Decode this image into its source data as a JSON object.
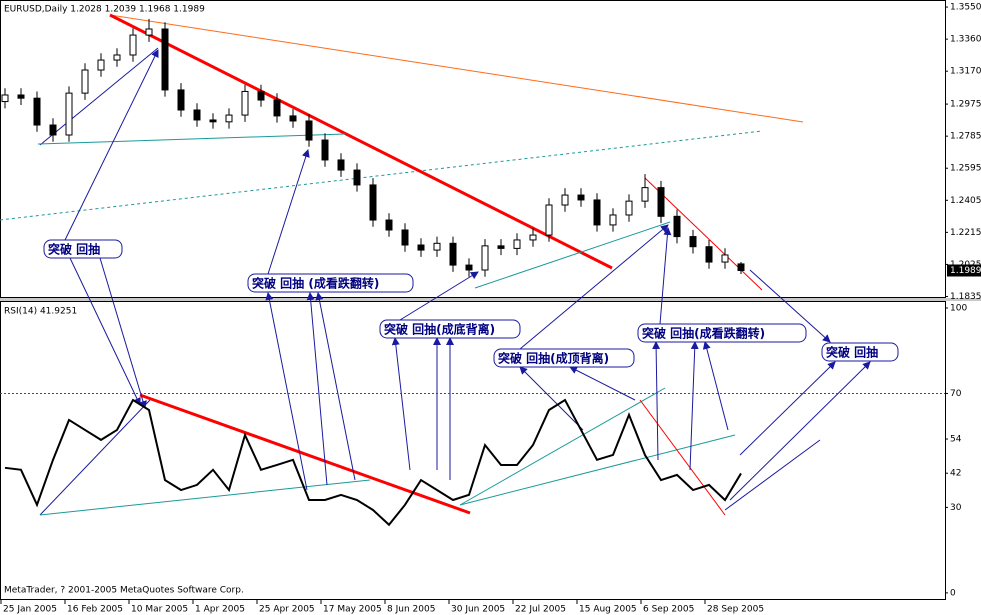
{
  "chart_data": [
    {
      "type": "candlestick",
      "title": "EURUSD,Daily  1.2028 1.2039 1.1968 1.1989",
      "open": [
        1.299,
        1.3029,
        1.301,
        1.2851,
        1.2792,
        1.304,
        1.3177,
        1.3236,
        1.3266,
        1.3384,
        1.342,
        1.3059,
        1.294,
        1.2881,
        1.287,
        1.291,
        1.305,
        1.2999,
        1.2905,
        1.2875,
        1.2762,
        1.2644,
        1.2584,
        1.2496,
        1.2288,
        1.2229,
        1.214,
        1.211,
        1.215,
        1.2021,
        1.1992,
        1.2135,
        1.212,
        1.217,
        1.2199,
        1.2377,
        1.2436,
        1.2407,
        1.2259,
        1.2318,
        1.24,
        1.248,
        1.231,
        1.219,
        1.213,
        1.2039,
        1.2028
      ],
      "high": [
        1.3069,
        1.3069,
        1.305,
        1.2891,
        1.308,
        1.3217,
        1.3276,
        1.3306,
        1.3424,
        1.348,
        1.346,
        1.3099,
        1.298,
        1.2921,
        1.295,
        1.309,
        1.309,
        1.3039,
        1.2945,
        1.2915,
        1.2802,
        1.2684,
        1.2624,
        1.2536,
        1.2328,
        1.2269,
        1.218,
        1.219,
        1.219,
        1.2061,
        1.2175,
        1.2175,
        1.221,
        1.2239,
        1.2417,
        1.2476,
        1.2476,
        1.2447,
        1.2358,
        1.244,
        1.256,
        1.252,
        1.235,
        1.223,
        1.217,
        1.2121,
        1.2039
      ],
      "low": [
        1.295,
        1.297,
        1.2811,
        1.2752,
        1.2752,
        1.3,
        1.3137,
        1.3196,
        1.3226,
        1.3344,
        1.3019,
        1.29,
        1.2841,
        1.283,
        1.283,
        1.287,
        1.2959,
        1.2865,
        1.2835,
        1.2722,
        1.2604,
        1.2544,
        1.2456,
        1.2248,
        1.2189,
        1.21,
        1.207,
        1.207,
        1.1981,
        1.1952,
        1.1952,
        1.208,
        1.208,
        1.213,
        1.2159,
        1.2337,
        1.2367,
        1.2219,
        1.2219,
        1.2278,
        1.236,
        1.227,
        1.215,
        1.209,
        1.1999,
        1.1999,
        1.1968
      ],
      "close": [
        1.3029,
        1.301,
        1.2851,
        1.2792,
        1.304,
        1.3177,
        1.3236,
        1.3266,
        1.3384,
        1.342,
        1.3059,
        1.294,
        1.2881,
        1.287,
        1.291,
        1.305,
        1.2999,
        1.2905,
        1.2875,
        1.2762,
        1.2644,
        1.2584,
        1.2496,
        1.2288,
        1.2229,
        1.214,
        1.211,
        1.215,
        1.2021,
        1.1992,
        1.2135,
        1.212,
        1.217,
        1.2199,
        1.2377,
        1.2436,
        1.2407,
        1.2259,
        1.2318,
        1.24,
        1.248,
        1.231,
        1.219,
        1.213,
        1.2039,
        1.2081,
        1.1989
      ],
      "current_price": 1.1989,
      "ylim": [
        1.1826,
        1.358
      ],
      "yticks": [
        {
          "value": 1.355,
          "label": "1.3550"
        },
        {
          "value": 1.336,
          "label": "1.3360"
        },
        {
          "value": 1.317,
          "label": "1.3170"
        },
        1.2975,
        1.2785,
        1.2595,
        1.2405,
        1.2215,
        1.2025,
        1.1835
      ],
      "x_labels": [
        "25 Jan 2005",
        "16 Feb 2005",
        "10 Mar 2005",
        "1 Apr 2005",
        "25 Apr 2005",
        "17 May 2005",
        "8 Jun 2005",
        "30 Jun 2005",
        "22 Jul 2005",
        "15 Aug 2005",
        "6 Sep 2005",
        "28 Sep 2005"
      ]
    },
    {
      "type": "line",
      "title": "RSI(14) 41.9251",
      "color": "#000000",
      "values": [
        43.9,
        43.2,
        30.9,
        46.7,
        60.7,
        57.2,
        53.7,
        57.2,
        67.7,
        64.2,
        39.6,
        36.1,
        37.9,
        43.2,
        36.1,
        55.4,
        43.2,
        44.9,
        46.7,
        32.6,
        32.6,
        34.4,
        32.6,
        29.1,
        23.9,
        30.9,
        39.6,
        36.1,
        32.6,
        34.4,
        51.9,
        44.9,
        44.9,
        51.9,
        64.2,
        67.7,
        57.2,
        46.7,
        48.4,
        62.5,
        48.4,
        39.6,
        41.4,
        36.1,
        37.9,
        32.6,
        41.9251
      ],
      "level": 70,
      "ylim": [
        -2.5,
        102.1
      ],
      "yticks": [
        100,
        70,
        54,
        42,
        30,
        0
      ]
    }
  ],
  "annotations": [
    "突破  回抽",
    "突破  回抽 (成看跌翻转)",
    "突破  回抽(成底背离)",
    "突破  回抽(成顶背离)",
    "突破  回抽(成看跌翻转)",
    "突破  回抽"
  ],
  "footer": "MetaTrader, ? 2001-2005 MetaQuotes Software Corp."
}
